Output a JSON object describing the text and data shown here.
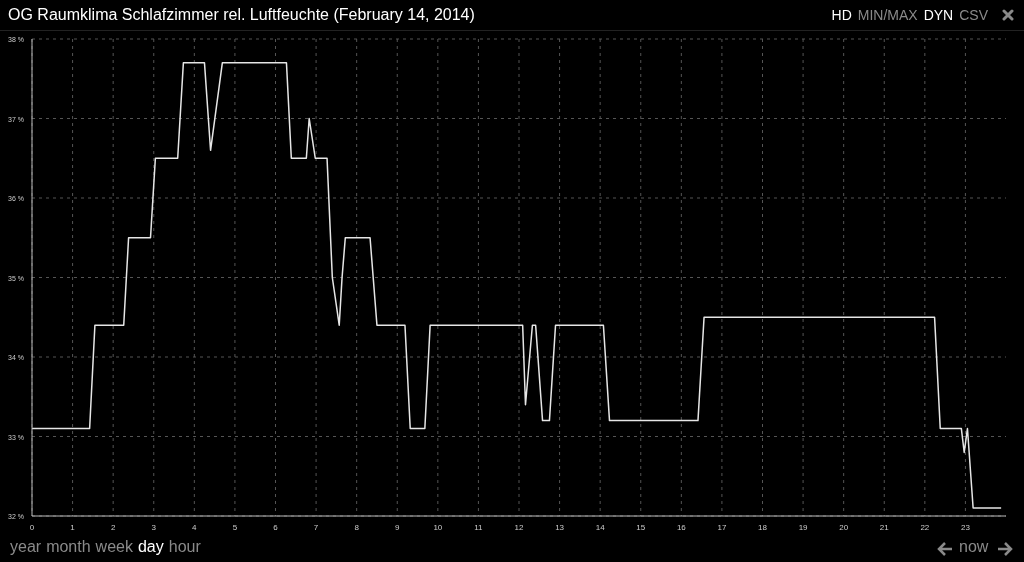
{
  "chart_data": {
    "type": "line",
    "title": "OG Raumklima Schlafzimmer rel. Luftfeuchte (February 14, 2014)",
    "x": [
      0,
      1.42,
      1.55,
      2.26,
      2.38,
      2.92,
      3.04,
      3.59,
      3.73,
      4.25,
      4.4,
      4.69,
      6.27,
      6.39,
      6.76,
      6.83,
      6.98,
      7.27,
      7.4,
      7.57,
      7.64,
      7.72,
      8.33,
      8.5,
      9.19,
      9.32,
      9.68,
      9.81,
      12.09,
      12.16,
      12.33,
      12.41,
      12.58,
      12.75,
      12.9,
      14.08,
      14.23,
      16.41,
      16.56,
      22.24,
      22.38,
      22.9,
      22.97,
      23.05,
      23.19,
      23.88
    ],
    "series": [
      {
        "color": "#e6e6e6",
        "values": [
          33.1,
          33.1,
          34.4,
          34.4,
          35.5,
          35.5,
          36.5,
          36.5,
          37.7,
          37.7,
          36.6,
          37.7,
          37.7,
          36.5,
          36.5,
          37.0,
          36.5,
          36.5,
          35.0,
          34.4,
          35.0,
          35.5,
          35.5,
          34.4,
          34.4,
          33.1,
          33.1,
          34.4,
          34.4,
          33.4,
          34.4,
          34.4,
          33.2,
          33.2,
          34.4,
          34.4,
          33.2,
          33.2,
          34.5,
          34.5,
          33.1,
          33.1,
          32.8,
          33.1,
          32.1,
          32.1
        ]
      }
    ],
    "xlim": [
      0,
      24
    ],
    "xticks": [
      0,
      1,
      2,
      3,
      4,
      5,
      6,
      7,
      8,
      9,
      10,
      11,
      12,
      13,
      14,
      15,
      16,
      17,
      18,
      19,
      20,
      21,
      22,
      23
    ],
    "ylim": [
      32,
      38
    ],
    "yticks": [
      {
        "value": 32,
        "label": "32 %"
      },
      {
        "value": 33,
        "label": "33 %"
      },
      {
        "value": 34,
        "label": "34 %"
      },
      {
        "value": 35,
        "label": "35 %"
      },
      {
        "value": 36,
        "label": "36 %"
      },
      {
        "value": 37,
        "label": "37 %"
      },
      {
        "value": 38,
        "label": "38 %"
      }
    ],
    "grid": true,
    "marker": "none",
    "line_style": "solid",
    "annotations": [
      "HD",
      "MIN/MAX",
      "DYN",
      "CSV",
      "year",
      "month",
      "week",
      "day",
      "hour",
      "now"
    ]
  }
}
